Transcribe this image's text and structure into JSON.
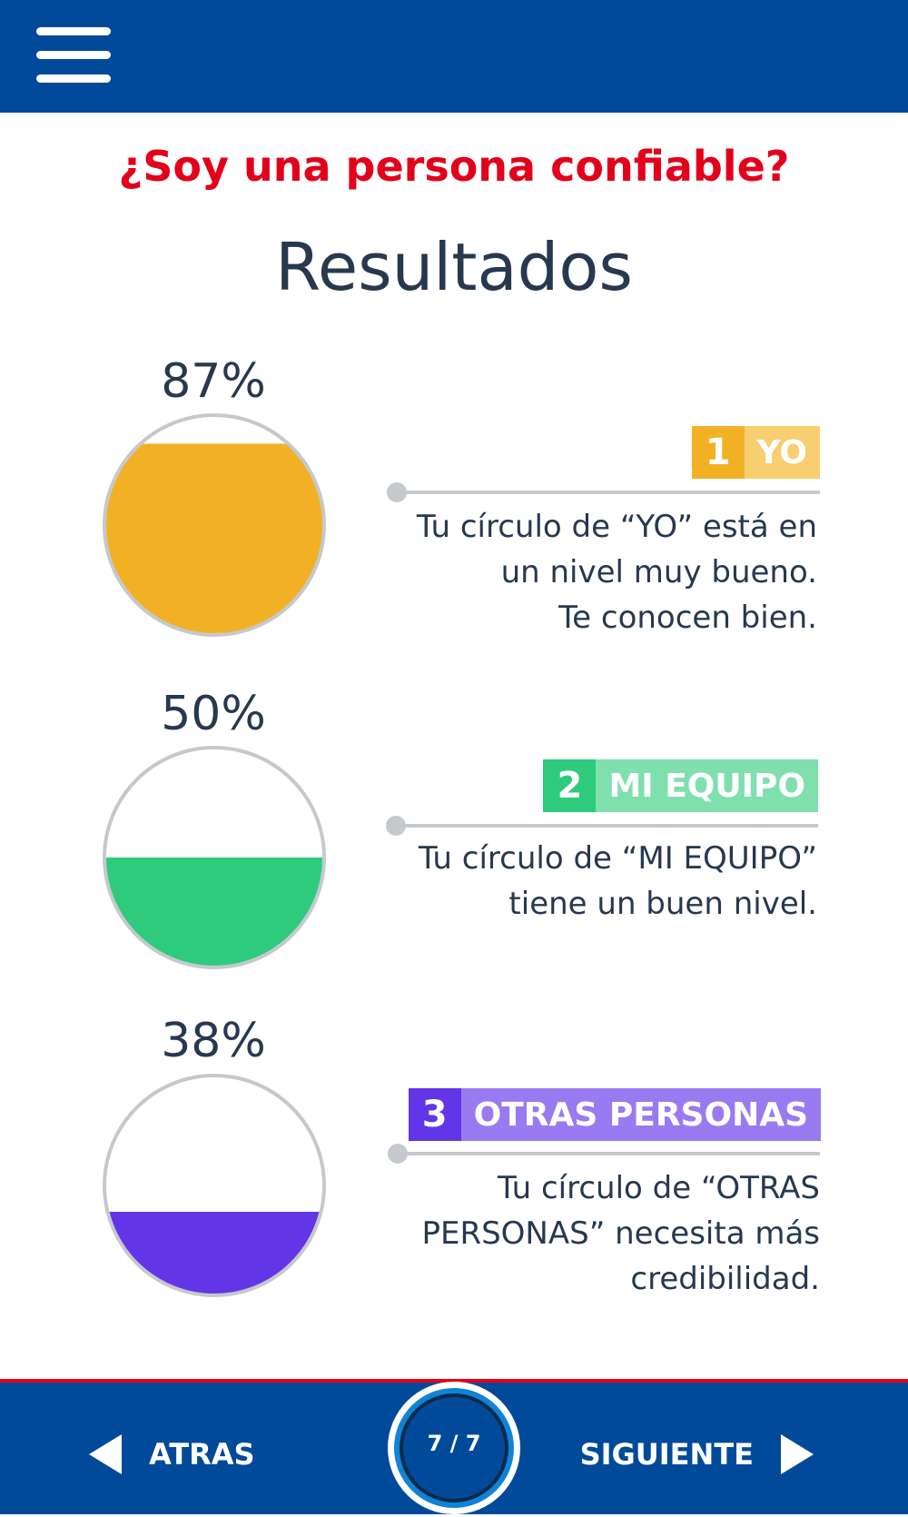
{
  "header": {
    "menu_icon": "hamburger-menu-icon"
  },
  "title": "¿Soy una persona confiable?",
  "subtitle": "Resultados",
  "results": [
    {
      "percent_label": "87%",
      "percent": 87,
      "number": "1",
      "label": "YO",
      "color_dark": "#f2b125",
      "color_light": "#f7cf71",
      "description": "Tu círculo de “YO” está en\nun nivel muy bueno.\nTe conocen bien."
    },
    {
      "percent_label": "50%",
      "percent": 50,
      "number": "2",
      "label": "MI EQUIPO",
      "color_dark": "#2fcb7c",
      "color_light": "#7fe0ae",
      "description": "Tu círculo de “MI EQUIPO”\ntiene un buen nivel."
    },
    {
      "percent_label": "38%",
      "percent": 38,
      "number": "3",
      "label": "OTRAS PERSONAS",
      "color_dark": "#6236e6",
      "color_light": "#9a7af0",
      "description": "Tu círculo de “OTRAS\nPERSONAS” necesita más\ncredibilidad."
    }
  ],
  "footer": {
    "back_label": "ATRAS",
    "next_label": "SIGUIENTE",
    "page_indicator": "7 / 7",
    "back_icon": "triangle-left-icon",
    "next_icon": "triangle-right-icon"
  },
  "colors": {
    "header_bg": "#004a99",
    "title_red": "#e3001b",
    "text_dark": "#27384f",
    "rule_gray": "#c5c9cd"
  }
}
